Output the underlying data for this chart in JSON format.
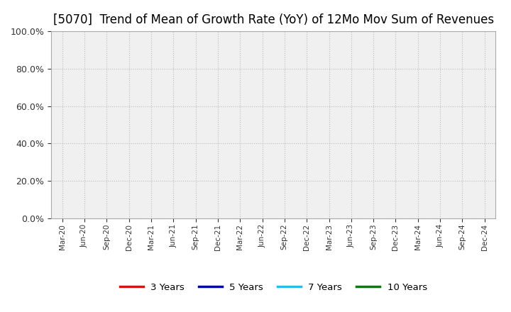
{
  "title": "[5070]  Trend of Mean of Growth Rate (YoY) of 12Mo Mov Sum of Revenues",
  "title_fontsize": 12,
  "background_color": "#ffffff",
  "plot_bg_color": "#f0f0f0",
  "ylim": [
    0.0,
    1.0
  ],
  "yticks": [
    0.0,
    0.2,
    0.4,
    0.6,
    0.8,
    1.0
  ],
  "ytick_labels": [
    "0.0%",
    "20.0%",
    "40.0%",
    "60.0%",
    "80.0%",
    "100.0%"
  ],
  "xtick_labels": [
    "Mar-20",
    "Jun-20",
    "Sep-20",
    "Dec-20",
    "Mar-21",
    "Jun-21",
    "Sep-21",
    "Dec-21",
    "Mar-22",
    "Jun-22",
    "Sep-22",
    "Dec-22",
    "Mar-23",
    "Jun-23",
    "Sep-23",
    "Dec-23",
    "Mar-24",
    "Jun-24",
    "Sep-24",
    "Dec-24"
  ],
  "grid_color": "#bbbbbb",
  "grid_style": "dotted",
  "legend_entries": [
    {
      "label": "3 Years",
      "color": "#ff0000"
    },
    {
      "label": "5 Years",
      "color": "#0000cc"
    },
    {
      "label": "7 Years",
      "color": "#00ccff"
    },
    {
      "label": "10 Years",
      "color": "#008000"
    }
  ],
  "legend_ncol": 4,
  "series": []
}
